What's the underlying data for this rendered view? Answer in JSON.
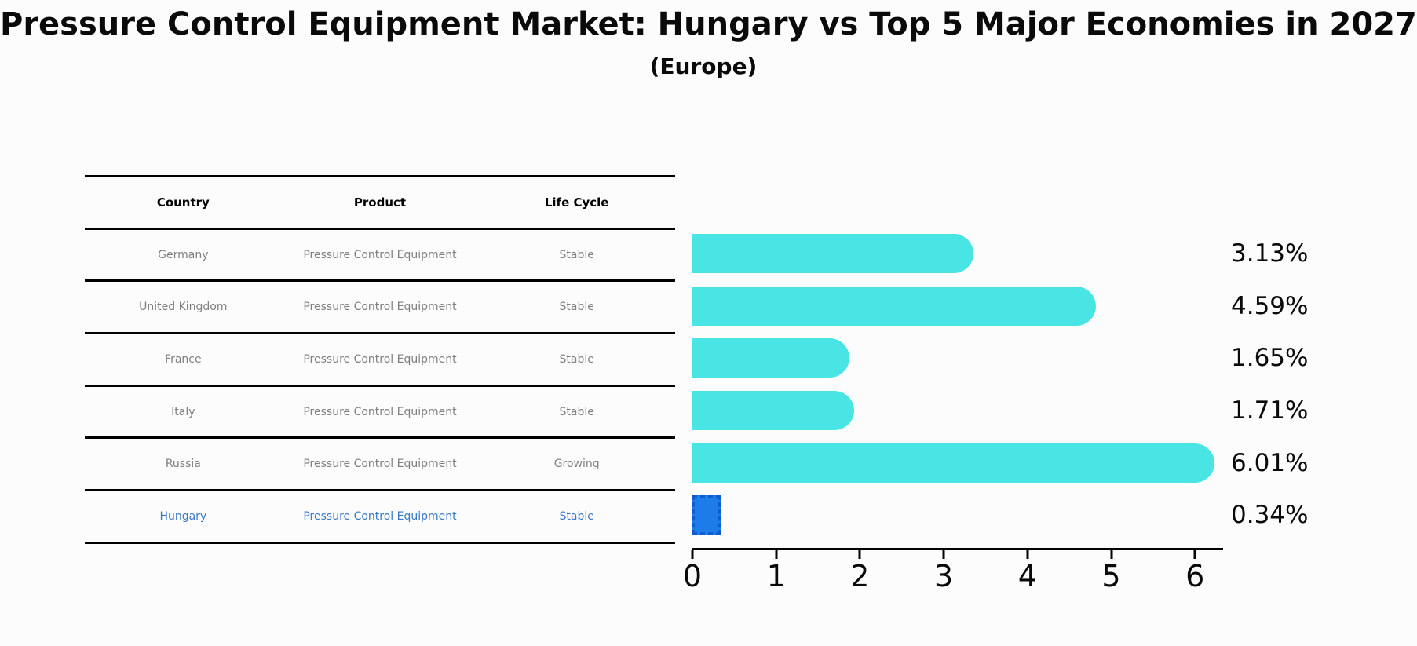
{
  "title": "Pressure Control Equipment Market: Hungary vs Top 5 Major Economies in 2027",
  "subtitle": "(Europe)",
  "table": {
    "headers": [
      "Country",
      "Product",
      "Life Cycle"
    ],
    "rows": [
      {
        "country": "Germany",
        "product": "Pressure Control Equipment",
        "life_cycle": "Stable",
        "highlighted": false
      },
      {
        "country": "United Kingdom",
        "product": "Pressure Control Equipment",
        "life_cycle": "Stable",
        "highlighted": false
      },
      {
        "country": "France",
        "product": "Pressure Control Equipment",
        "life_cycle": "Stable",
        "highlighted": false
      },
      {
        "country": "Italy",
        "product": "Pressure Control Equipment",
        "life_cycle": "Stable",
        "highlighted": false
      },
      {
        "country": "Russia",
        "product": "Pressure Control Equipment",
        "life_cycle": "Growing",
        "highlighted": false
      },
      {
        "country": "Hungary",
        "product": "Pressure Control Equipment",
        "life_cycle": "Stable",
        "highlighted": true
      }
    ]
  },
  "chart_data": {
    "type": "bar",
    "orientation": "horizontal",
    "title": "Pressure Control Equipment Market: Hungary vs Top 5 Major Economies in 2027",
    "subtitle": "(Europe)",
    "categories": [
      "Germany",
      "United Kingdom",
      "France",
      "Italy",
      "Russia",
      "Hungary"
    ],
    "values": [
      3.13,
      4.59,
      1.65,
      1.71,
      6.01,
      0.34
    ],
    "value_labels": [
      "3.13%",
      "4.59%",
      "1.65%",
      "1.71%",
      "6.01%",
      "0.34%"
    ],
    "x_ticks": [
      "0",
      "1",
      "2",
      "3",
      "4",
      "5",
      "6"
    ],
    "xlim": [
      0,
      6.3
    ],
    "xlabel": "",
    "ylabel": "",
    "grid": false,
    "legend": false,
    "highlight_index": 5,
    "colors": {
      "bar": "#48E5E4",
      "highlight_bar": "#1E7CE8",
      "highlight_bar_border": "#0F5BD0",
      "highlight_text": "#3879C7",
      "table_text": "#7f7f7f",
      "axis": "#000000"
    }
  }
}
